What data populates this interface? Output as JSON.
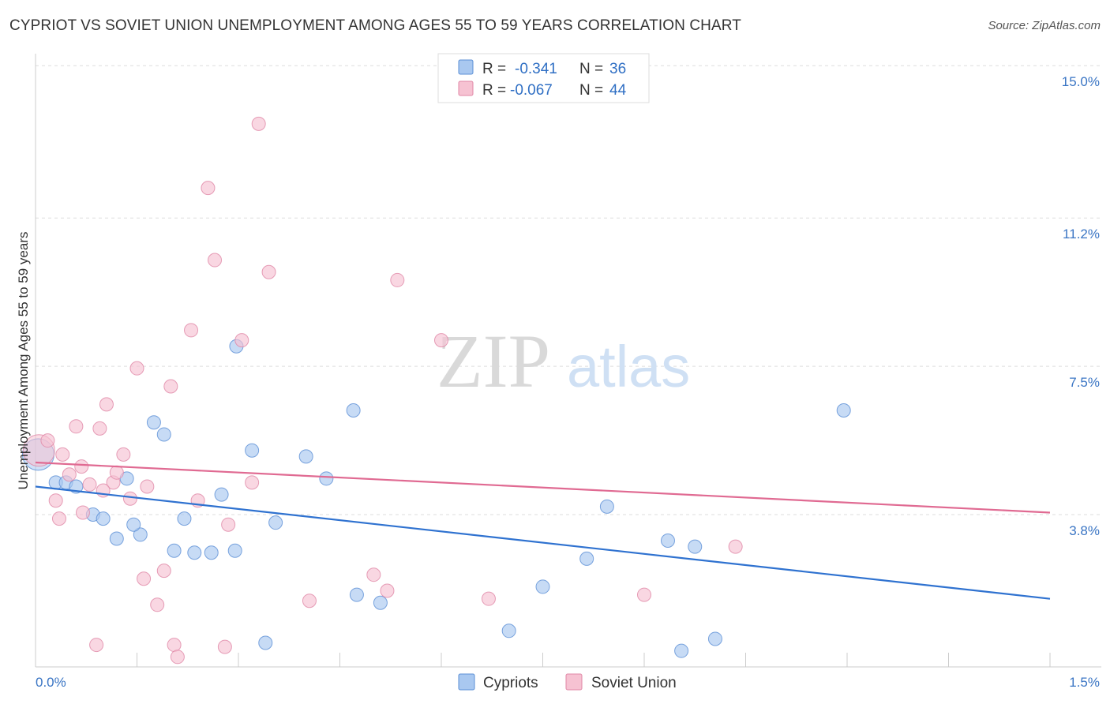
{
  "title": "CYPRIOT VS SOVIET UNION UNEMPLOYMENT AMONG AGES 55 TO 59 YEARS CORRELATION CHART",
  "source": "Source: ZipAtlas.com",
  "watermark": {
    "zip": "ZIP",
    "atlas": "atlas"
  },
  "legend_top": [
    {
      "r_label": "R =",
      "r_value": "-0.341",
      "n_label": "N =",
      "n_value": "36",
      "color": "#a9c8f0",
      "border": "#5b8fd6"
    },
    {
      "r_label": "R =",
      "r_value": "-0.067",
      "n_label": "N =",
      "n_value": "44",
      "color": "#f6c2d2",
      "border": "#e087a6"
    }
  ],
  "chart_data": {
    "type": "scatter",
    "xlabel": "",
    "ylabel": "Unemployment Among Ages 55 to 59 years",
    "xlim": [
      0,
      1.5
    ],
    "ylim": [
      0,
      15.3
    ],
    "x_tick_labels": [
      "0.0%",
      "1.5%"
    ],
    "y_ticks": [
      {
        "value": 3.8,
        "label": "3.8%"
      },
      {
        "value": 7.5,
        "label": "7.5%"
      },
      {
        "value": 11.2,
        "label": "11.2%"
      },
      {
        "value": 15.0,
        "label": "15.0%"
      }
    ],
    "grid": true,
    "legend_position": "bottom",
    "series": [
      {
        "name": "Cypriots",
        "color": "#a9c8f0",
        "stroke": "#5b8fd6",
        "line_color": "#2f72d0",
        "trend": {
          "x0": 0.0,
          "y0": 4.5,
          "x1": 1.5,
          "y1": 1.7
        },
        "points": [
          {
            "x": 0.004,
            "y": 5.3,
            "big": true
          },
          {
            "x": 0.03,
            "y": 4.6
          },
          {
            "x": 0.045,
            "y": 4.6
          },
          {
            "x": 0.06,
            "y": 4.5
          },
          {
            "x": 0.085,
            "y": 3.8
          },
          {
            "x": 0.1,
            "y": 3.7
          },
          {
            "x": 0.12,
            "y": 3.2
          },
          {
            "x": 0.135,
            "y": 4.7
          },
          {
            "x": 0.155,
            "y": 3.3
          },
          {
            "x": 0.175,
            "y": 6.1
          },
          {
            "x": 0.19,
            "y": 5.8
          },
          {
            "x": 0.205,
            "y": 2.9
          },
          {
            "x": 0.22,
            "y": 3.7
          },
          {
            "x": 0.235,
            "y": 2.85
          },
          {
            "x": 0.26,
            "y": 2.85
          },
          {
            "x": 0.275,
            "y": 4.3
          },
          {
            "x": 0.295,
            "y": 2.9
          },
          {
            "x": 0.297,
            "y": 8.0
          },
          {
            "x": 0.32,
            "y": 5.4
          },
          {
            "x": 0.34,
            "y": 0.6
          },
          {
            "x": 0.355,
            "y": 3.6
          },
          {
            "x": 0.4,
            "y": 5.25
          },
          {
            "x": 0.43,
            "y": 4.7
          },
          {
            "x": 0.47,
            "y": 6.4
          },
          {
            "x": 0.475,
            "y": 1.8
          },
          {
            "x": 0.51,
            "y": 1.6
          },
          {
            "x": 0.7,
            "y": 0.9
          },
          {
            "x": 0.75,
            "y": 2.0
          },
          {
            "x": 0.815,
            "y": 2.7
          },
          {
            "x": 0.845,
            "y": 4.0
          },
          {
            "x": 0.935,
            "y": 3.15
          },
          {
            "x": 0.955,
            "y": 0.4
          },
          {
            "x": 0.975,
            "y": 3.0
          },
          {
            "x": 1.005,
            "y": 0.7
          },
          {
            "x": 1.195,
            "y": 6.4
          },
          {
            "x": 0.145,
            "y": 3.55
          }
        ]
      },
      {
        "name": "Soviet Union",
        "color": "#f6c2d2",
        "stroke": "#e087a6",
        "line_color": "#e06a92",
        "trend": {
          "x0": 0.0,
          "y0": 5.1,
          "x1": 1.5,
          "y1": 3.85
        },
        "points": [
          {
            "x": 0.005,
            "y": 5.4,
            "big": true
          },
          {
            "x": 0.018,
            "y": 5.65
          },
          {
            "x": 0.03,
            "y": 4.15
          },
          {
            "x": 0.035,
            "y": 3.7
          },
          {
            "x": 0.04,
            "y": 5.3
          },
          {
            "x": 0.05,
            "y": 4.8
          },
          {
            "x": 0.06,
            "y": 6.0
          },
          {
            "x": 0.07,
            "y": 3.85
          },
          {
            "x": 0.08,
            "y": 4.55
          },
          {
            "x": 0.09,
            "y": 0.55
          },
          {
            "x": 0.095,
            "y": 5.95
          },
          {
            "x": 0.105,
            "y": 6.55
          },
          {
            "x": 0.115,
            "y": 4.6
          },
          {
            "x": 0.12,
            "y": 4.85
          },
          {
            "x": 0.13,
            "y": 5.3
          },
          {
            "x": 0.14,
            "y": 4.2
          },
          {
            "x": 0.15,
            "y": 7.45
          },
          {
            "x": 0.16,
            "y": 2.2
          },
          {
            "x": 0.165,
            "y": 4.5
          },
          {
            "x": 0.18,
            "y": 1.55
          },
          {
            "x": 0.19,
            "y": 2.4
          },
          {
            "x": 0.2,
            "y": 7.0
          },
          {
            "x": 0.205,
            "y": 0.55
          },
          {
            "x": 0.21,
            "y": 0.25
          },
          {
            "x": 0.23,
            "y": 8.4
          },
          {
            "x": 0.24,
            "y": 4.15
          },
          {
            "x": 0.255,
            "y": 11.95
          },
          {
            "x": 0.265,
            "y": 10.15
          },
          {
            "x": 0.28,
            "y": 0.5
          },
          {
            "x": 0.285,
            "y": 3.55
          },
          {
            "x": 0.305,
            "y": 8.15
          },
          {
            "x": 0.32,
            "y": 4.6
          },
          {
            "x": 0.33,
            "y": 13.55
          },
          {
            "x": 0.345,
            "y": 9.85
          },
          {
            "x": 0.405,
            "y": 1.65
          },
          {
            "x": 0.5,
            "y": 2.3
          },
          {
            "x": 0.52,
            "y": 1.9
          },
          {
            "x": 0.535,
            "y": 9.65
          },
          {
            "x": 0.6,
            "y": 8.15
          },
          {
            "x": 0.67,
            "y": 1.7
          },
          {
            "x": 0.9,
            "y": 1.8
          },
          {
            "x": 1.035,
            "y": 3.0
          },
          {
            "x": 0.1,
            "y": 4.4
          },
          {
            "x": 0.068,
            "y": 5.0
          }
        ]
      }
    ]
  }
}
